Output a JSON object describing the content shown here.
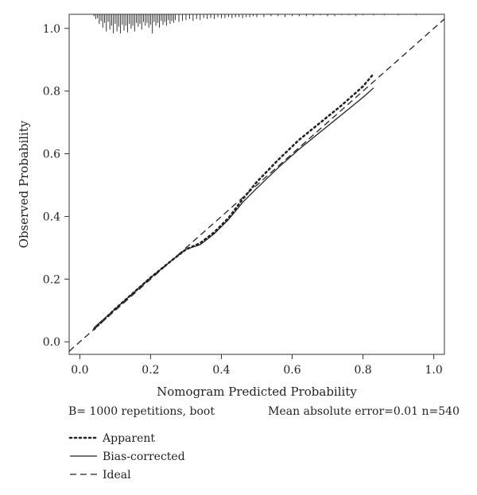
{
  "chart_data": {
    "type": "line",
    "title": "",
    "xlabel": "Nomogram Predicted Probability",
    "ylabel": "Observed Probability",
    "xlim": [
      -0.03,
      1.03
    ],
    "ylim": [
      -0.04,
      1.045
    ],
    "x_ticks": [
      0.0,
      0.2,
      0.4,
      0.6,
      0.8,
      1.0
    ],
    "y_ticks": [
      0.0,
      0.2,
      0.4,
      0.6,
      0.8,
      1.0
    ],
    "x_tick_labels": [
      "0.0",
      "0.2",
      "0.4",
      "0.6",
      "0.8",
      "1.0"
    ],
    "y_tick_labels": [
      "0.0",
      "0.2",
      "0.4",
      "0.6",
      "0.8",
      "1.0"
    ],
    "grid": false,
    "legend_position": "below plot, left",
    "series": [
      {
        "name": "Apparent",
        "style": "dotted",
        "color": "#222222",
        "points": [
          [
            0.04,
            0.04
          ],
          [
            0.1,
            0.105
          ],
          [
            0.2,
            0.205
          ],
          [
            0.26,
            0.26
          ],
          [
            0.3,
            0.295
          ],
          [
            0.34,
            0.315
          ],
          [
            0.38,
            0.35
          ],
          [
            0.42,
            0.395
          ],
          [
            0.46,
            0.455
          ],
          [
            0.5,
            0.51
          ],
          [
            0.56,
            0.58
          ],
          [
            0.62,
            0.645
          ],
          [
            0.68,
            0.7
          ],
          [
            0.74,
            0.755
          ],
          [
            0.8,
            0.815
          ],
          [
            0.83,
            0.855
          ]
        ]
      },
      {
        "name": "Bias-corrected",
        "style": "solid",
        "color": "#222222",
        "points": [
          [
            0.04,
            0.045
          ],
          [
            0.1,
            0.105
          ],
          [
            0.2,
            0.205
          ],
          [
            0.26,
            0.26
          ],
          [
            0.3,
            0.295
          ],
          [
            0.34,
            0.31
          ],
          [
            0.38,
            0.345
          ],
          [
            0.42,
            0.39
          ],
          [
            0.46,
            0.445
          ],
          [
            0.5,
            0.49
          ],
          [
            0.56,
            0.555
          ],
          [
            0.62,
            0.615
          ],
          [
            0.68,
            0.67
          ],
          [
            0.74,
            0.725
          ],
          [
            0.8,
            0.78
          ],
          [
            0.83,
            0.81
          ]
        ]
      },
      {
        "name": "Ideal",
        "style": "dashed",
        "color": "#222222",
        "points": [
          [
            -0.03,
            -0.03
          ],
          [
            1.03,
            1.03
          ]
        ]
      }
    ],
    "rug": {
      "positions": [
        0.04,
        0.045,
        0.05,
        0.055,
        0.06,
        0.065,
        0.07,
        0.075,
        0.08,
        0.085,
        0.09,
        0.095,
        0.1,
        0.105,
        0.11,
        0.115,
        0.12,
        0.125,
        0.13,
        0.135,
        0.14,
        0.145,
        0.15,
        0.155,
        0.16,
        0.165,
        0.17,
        0.175,
        0.18,
        0.185,
        0.19,
        0.195,
        0.2,
        0.205,
        0.21,
        0.215,
        0.22,
        0.225,
        0.23,
        0.235,
        0.24,
        0.245,
        0.25,
        0.255,
        0.26,
        0.265,
        0.27,
        0.28,
        0.29,
        0.3,
        0.31,
        0.32,
        0.33,
        0.34,
        0.35,
        0.36,
        0.37,
        0.38,
        0.39,
        0.4,
        0.41,
        0.42,
        0.43,
        0.44,
        0.45,
        0.46,
        0.47,
        0.48,
        0.49,
        0.5,
        0.52,
        0.54,
        0.56,
        0.58,
        0.6,
        0.62,
        0.64,
        0.66,
        0.68,
        0.7,
        0.72,
        0.74,
        0.76,
        0.78,
        0.8,
        0.83,
        0.86,
        0.9,
        0.95
      ],
      "counts": [
        2,
        5,
        4,
        10,
        7,
        14,
        9,
        18,
        8,
        16,
        12,
        20,
        10,
        18,
        13,
        20,
        11,
        17,
        12,
        19,
        10,
        15,
        12,
        18,
        9,
        13,
        10,
        16,
        8,
        12,
        9,
        14,
        11,
        20,
        8,
        12,
        9,
        14,
        7,
        11,
        8,
        12,
        6,
        10,
        7,
        9,
        6,
        8,
        7,
        6,
        5,
        7,
        5,
        6,
        4,
        5,
        4,
        5,
        3,
        4,
        4,
        3,
        4,
        3,
        3,
        4,
        3,
        3,
        2,
        3,
        3,
        2,
        2,
        3,
        2,
        2,
        2,
        2,
        1,
        2,
        2,
        1,
        1,
        2,
        1,
        1,
        1,
        1,
        1
      ]
    }
  },
  "footer": {
    "left": "B= 1000 repetitions, boot",
    "right": "Mean absolute error=0.01 n=540"
  },
  "legend": [
    {
      "label": "Apparent",
      "style": "dotted"
    },
    {
      "label": "Bias-corrected",
      "style": "solid"
    },
    {
      "label": "Ideal",
      "style": "dashed"
    }
  ]
}
